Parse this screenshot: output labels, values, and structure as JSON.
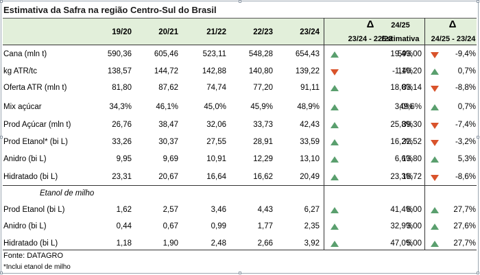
{
  "title": "Estimativa da Safra na região Centro-Sul do Brasil",
  "header": {
    "years": [
      "19/20",
      "20/21",
      "21/22",
      "22/23",
      "23/24"
    ],
    "delta_symbol": "Δ",
    "delta1_sub": "23/24 - 22/23",
    "est_year": "24/25",
    "est_sub": "Estimativa",
    "delta2_sub": "24/25 - 23/24"
  },
  "rows": [
    {
      "label": "Cana (mln t)",
      "v": [
        "590,36",
        "605,46",
        "523,11",
        "548,28",
        "654,43"
      ],
      "d1": "19,4%",
      "d1dir": "up",
      "est": "593,00",
      "d2": "-9,4%",
      "d2dir": "down"
    },
    {
      "label": "kg ATR/tc",
      "v": [
        "138,57",
        "144,72",
        "142,88",
        "140,80",
        "139,22"
      ],
      "d1": "-1,1%",
      "d1dir": "down",
      "est": "140,20",
      "d2": "0,7%",
      "d2dir": "up"
    },
    {
      "label": "Oferta ATR (mln t)",
      "v": [
        "81,80",
        "87,62",
        "74,74",
        "77,20",
        "91,11"
      ],
      "d1": "18,0%",
      "d1dir": "up",
      "est": "83,14",
      "d2": "-8,8%",
      "d2dir": "down"
    },
    {
      "label": "Mix açúcar",
      "v": [
        "34,3%",
        "46,1%",
        "45,0%",
        "45,9%",
        "48,9%"
      ],
      "d1": "3,0%",
      "d1dir": "up",
      "est": "49,6%",
      "d2": "0,7%",
      "d2dir": "up"
    },
    {
      "label": "Prod Açúcar (mln t)",
      "v": [
        "26,76",
        "38,47",
        "32,06",
        "33,73",
        "42,43"
      ],
      "d1": "25,8%",
      "d1dir": "up",
      "est": "39,30",
      "d2": "-7,4%",
      "d2dir": "down"
    },
    {
      "label": "Prod Etanol* (bi L)",
      "v": [
        "33,26",
        "30,37",
        "27,55",
        "28,91",
        "33,59"
      ],
      "d1": "16,2%",
      "d1dir": "up",
      "est": "32,52",
      "d2": "-3,2%",
      "d2dir": "down"
    },
    {
      "label": "Anidro (bi L)",
      "v": [
        "9,95",
        "9,69",
        "10,91",
        "12,29",
        "13,10"
      ],
      "d1": "6,6%",
      "d1dir": "up",
      "est": "13,80",
      "d2": "5,3%",
      "d2dir": "up"
    },
    {
      "label": "Hidratado (bi L)",
      "v": [
        "23,31",
        "20,67",
        "16,64",
        "16,62",
        "20,49"
      ],
      "d1": "23,3%",
      "d1dir": "up",
      "est": "18,72",
      "d2": "-8,6%",
      "d2dir": "down"
    }
  ],
  "section2_title": "Etanol de milho",
  "rows2": [
    {
      "label": "Prod Etanol (bi L)",
      "v": [
        "1,62",
        "2,57",
        "3,46",
        "4,43",
        "6,27"
      ],
      "d1": "41,4%",
      "d1dir": "up",
      "est": "8,00",
      "d2": "27,7%",
      "d2dir": "up"
    },
    {
      "label": "Anidro (bi L)",
      "v": [
        "0,44",
        "0,67",
        "0,99",
        "1,77",
        "2,35"
      ],
      "d1": "32,9%",
      "d1dir": "up",
      "est": "3,00",
      "d2": "27,6%",
      "d2dir": "up"
    },
    {
      "label": "Hidratado (bi L)",
      "v": [
        "1,18",
        "1,90",
        "2,48",
        "2,66",
        "3,92"
      ],
      "d1": "47,0%",
      "d1dir": "up",
      "est": "5,00",
      "d2": "27,7%",
      "d2dir": "up"
    }
  ],
  "footer": {
    "source": "Fonte: DATAGRO",
    "note": "*Inclui etanol de milho"
  },
  "colors": {
    "header_bg": "#e2efda",
    "up": "#5a9f6e",
    "down": "#d9532b"
  }
}
